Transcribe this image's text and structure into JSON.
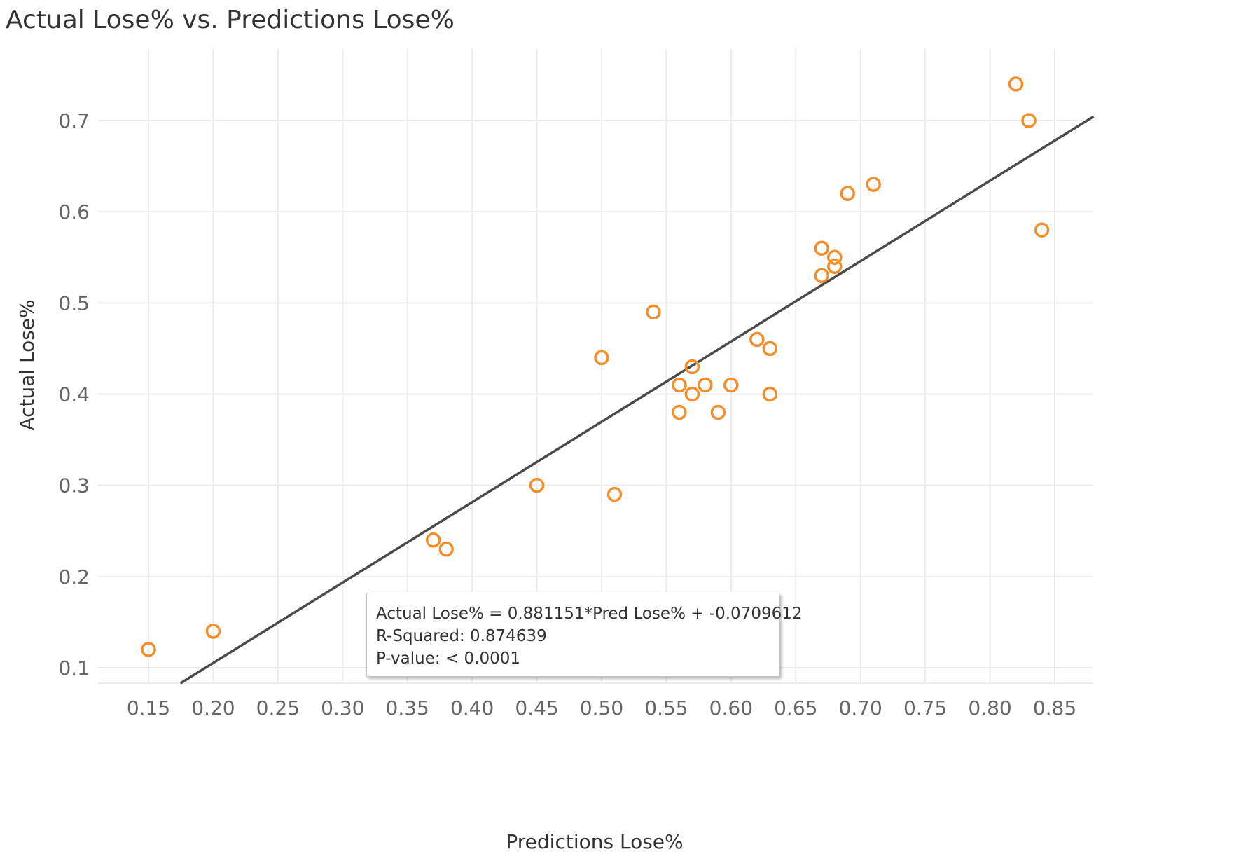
{
  "chart_data": {
    "type": "scatter",
    "title": "Actual Lose% vs. Predictions Lose%",
    "xlabel": "Predictions Lose%",
    "ylabel": "Actual Lose%",
    "xlim": [
      0.115,
      0.88
    ],
    "ylim": [
      0.083,
      0.8
    ],
    "x_ticks": [
      "0.15",
      "0.20",
      "0.25",
      "0.30",
      "0.35",
      "0.40",
      "0.45",
      "0.50",
      "0.55",
      "0.60",
      "0.65",
      "0.70",
      "0.75",
      "0.80",
      "0.85"
    ],
    "x_tick_values": [
      0.15,
      0.2,
      0.25,
      0.3,
      0.35,
      0.4,
      0.45,
      0.5,
      0.55,
      0.6,
      0.65,
      0.7,
      0.75,
      0.8,
      0.85
    ],
    "y_ticks": [
      "0.1",
      "0.2",
      "0.3",
      "0.4",
      "0.5",
      "0.6",
      "0.7"
    ],
    "y_tick_values": [
      0.1,
      0.2,
      0.3,
      0.4,
      0.5,
      0.6,
      0.7
    ],
    "grid": true,
    "points": [
      {
        "x": 0.15,
        "y": 0.12
      },
      {
        "x": 0.2,
        "y": 0.14
      },
      {
        "x": 0.37,
        "y": 0.24
      },
      {
        "x": 0.38,
        "y": 0.23
      },
      {
        "x": 0.45,
        "y": 0.3
      },
      {
        "x": 0.5,
        "y": 0.44
      },
      {
        "x": 0.51,
        "y": 0.29
      },
      {
        "x": 0.54,
        "y": 0.49
      },
      {
        "x": 0.56,
        "y": 0.41
      },
      {
        "x": 0.56,
        "y": 0.38
      },
      {
        "x": 0.57,
        "y": 0.43
      },
      {
        "x": 0.57,
        "y": 0.4
      },
      {
        "x": 0.58,
        "y": 0.41
      },
      {
        "x": 0.59,
        "y": 0.38
      },
      {
        "x": 0.6,
        "y": 0.41
      },
      {
        "x": 0.62,
        "y": 0.46
      },
      {
        "x": 0.63,
        "y": 0.45
      },
      {
        "x": 0.63,
        "y": 0.4
      },
      {
        "x": 0.67,
        "y": 0.56
      },
      {
        "x": 0.67,
        "y": 0.53
      },
      {
        "x": 0.68,
        "y": 0.55
      },
      {
        "x": 0.68,
        "y": 0.54
      },
      {
        "x": 0.69,
        "y": 0.62
      },
      {
        "x": 0.71,
        "y": 0.63
      },
      {
        "x": 0.82,
        "y": 0.74
      },
      {
        "x": 0.83,
        "y": 0.7
      },
      {
        "x": 0.84,
        "y": 0.58
      }
    ],
    "trend_line": {
      "slope": 0.881151,
      "intercept": -0.0709612
    },
    "tooltip": {
      "equation": "Actual Lose% = 0.881151*Pred Lose% + -0.0709612",
      "r_squared": "R-Squared: 0.874639",
      "p_value": "P-value: < 0.0001"
    },
    "colors": {
      "point": "#f28e2b",
      "trend_line": "#4a4a4a"
    }
  }
}
